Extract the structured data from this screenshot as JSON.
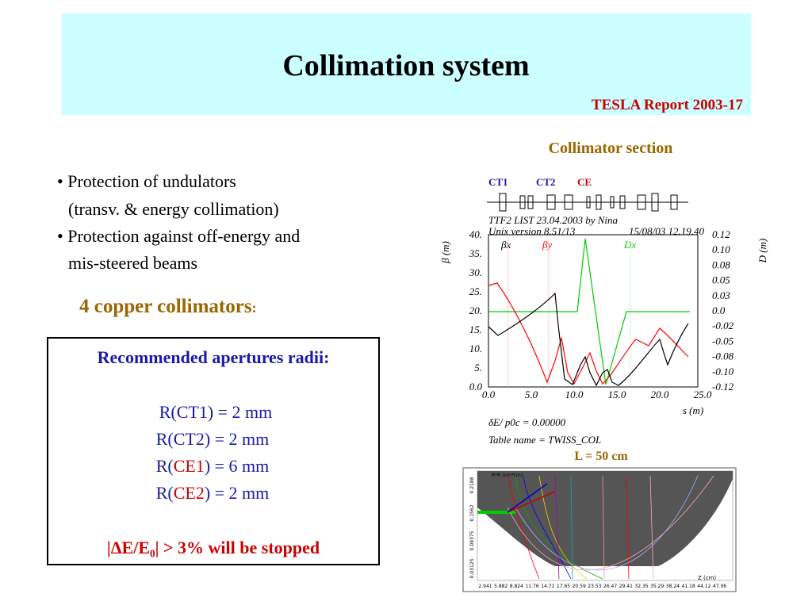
{
  "header": {
    "title": "Collimation system",
    "source": "TESLA  Report 2003-17"
  },
  "bullets": [
    "• Protection of undulators",
    "(transv. & energy collimation)",
    "• Protection against off-energy and",
    "mis-steered beams"
  ],
  "subheading": {
    "text": "4 copper  collimators",
    "colon": ":"
  },
  "apertures": {
    "title": "Recommended apertures radii:",
    "lines": [
      {
        "prefix": "R(",
        "name": "CT1",
        "suffix": ") = 2 mm"
      },
      {
        "prefix": "R(",
        "name": "CT2",
        "suffix": ") = 2 mm"
      },
      {
        "prefix": "R(",
        "name": "CE1",
        "suffix": ") = 6 mm"
      },
      {
        "prefix": "R(",
        "name": "CE2",
        "suffix": ") = 2 mm"
      }
    ],
    "stopped": "|ΔE/E₀| > 3% will be stopped"
  },
  "figure": {
    "caption": "Collimator section",
    "elements": [
      "CT1",
      "CT2",
      "CE"
    ],
    "plot_header": [
      "TTF2 LIST 23.04.2003 by Nina",
      "Unix version 8.51/13",
      "15/08/03  12.19.40"
    ],
    "y_label": "β (m)",
    "y2_label": "D (m)",
    "x_label": "s (m)",
    "yticks": [
      "40.",
      "35.",
      "30.",
      "25.",
      "20.",
      "15.",
      "10.",
      "5.",
      "0.0"
    ],
    "y2ticks": [
      "0.12",
      "0.10",
      "0.08",
      "0.05",
      "0.03",
      "0.0",
      "-0.02",
      "-0.05",
      "-0.08",
      "-0.10",
      "-0.12"
    ],
    "xticks": [
      "0.0",
      "5.0",
      "10.0",
      "15.0",
      "20.0",
      "25.0"
    ],
    "legend": [
      "βx",
      "βy",
      "Dx"
    ],
    "footer": [
      "δE/ p0c   =     0.00000",
      "Table name = TWISS_COL"
    ],
    "length": "L = 50 cm"
  },
  "tracking": {
    "y_label": "R*R (cm*cm)",
    "x_label": "Z (cm)",
    "yticks": [
      "0.2188",
      "0.1562",
      "0.09375",
      "0.03125"
    ],
    "xticks": [
      "2.941",
      "5.882",
      "8.824",
      "11.76",
      "14.71",
      "17.65",
      "20.59",
      "23.53",
      "26.47",
      "29.41",
      "32.35",
      "35.29",
      "38.24",
      "41.18",
      "44.12",
      "47.06"
    ]
  }
}
